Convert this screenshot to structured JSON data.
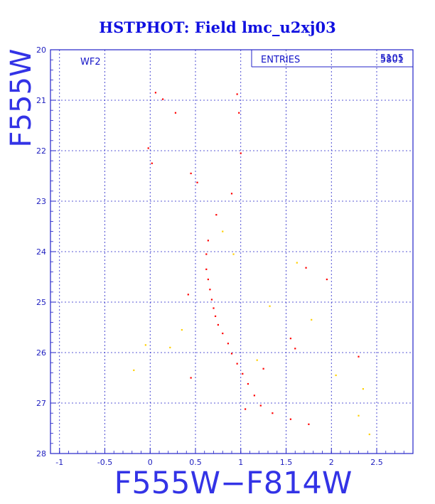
{
  "chart_data": {
    "type": "scatter",
    "title": "HSTPHOT: Field lmc_u2xj03",
    "xlabel": "F555W−F814W",
    "ylabel": "F555W",
    "xlim": [
      -1.1,
      2.9
    ],
    "ylim": [
      28,
      20
    ],
    "y_inverted": true,
    "grid": true,
    "x_ticks": [
      -1,
      -0.5,
      0,
      0.5,
      1,
      1.5,
      2,
      2.5
    ],
    "x_tick_labels": [
      "-1",
      "-0.5",
      "0",
      "0.5",
      "1",
      "1.5",
      "2",
      "2.5"
    ],
    "y_ticks": [
      20,
      21,
      22,
      23,
      24,
      25,
      26,
      27,
      28
    ],
    "y_tick_labels": [
      "20",
      "21",
      "22",
      "23",
      "24",
      "25",
      "26",
      "27",
      "28"
    ],
    "chip_label": "WF2",
    "stats_box": {
      "label": "ENTRIES",
      "value": "5105",
      "overlap_value": "5801"
    },
    "series": [
      {
        "color": "#ff0000",
        "values": [
          [
            0.06,
            20.85
          ],
          [
            0.14,
            20.98
          ],
          [
            0.28,
            21.25
          ],
          [
            -0.02,
            21.95
          ],
          [
            0.02,
            22.25
          ],
          [
            0.45,
            22.45
          ],
          [
            0.52,
            22.63
          ],
          [
            0.96,
            20.88
          ],
          [
            0.98,
            21.25
          ],
          [
            1.0,
            22.05
          ],
          [
            0.9,
            22.85
          ],
          [
            0.73,
            23.27
          ],
          [
            0.64,
            23.78
          ],
          [
            0.62,
            24.05
          ],
          [
            0.62,
            24.35
          ],
          [
            0.64,
            24.55
          ],
          [
            0.66,
            24.75
          ],
          [
            0.68,
            24.95
          ],
          [
            0.7,
            25.12
          ],
          [
            0.72,
            25.28
          ],
          [
            0.75,
            25.45
          ],
          [
            0.8,
            25.62
          ],
          [
            0.86,
            25.82
          ],
          [
            0.9,
            26.02
          ],
          [
            0.96,
            26.22
          ],
          [
            1.02,
            26.42
          ],
          [
            1.08,
            26.62
          ],
          [
            1.15,
            26.85
          ],
          [
            1.22,
            27.05
          ],
          [
            1.35,
            27.2
          ],
          [
            1.55,
            27.32
          ],
          [
            1.75,
            27.42
          ],
          [
            1.55,
            25.72
          ],
          [
            1.6,
            25.92
          ],
          [
            1.72,
            24.32
          ],
          [
            1.95,
            24.55
          ],
          [
            2.3,
            26.08
          ],
          [
            1.25,
            26.32
          ],
          [
            1.05,
            27.12
          ],
          [
            0.45,
            26.5
          ],
          [
            0.42,
            24.85
          ]
        ]
      },
      {
        "color": "#ffd000",
        "values": [
          [
            -0.05,
            25.85
          ],
          [
            -0.18,
            26.35
          ],
          [
            0.35,
            25.55
          ],
          [
            1.18,
            26.15
          ],
          [
            1.32,
            25.08
          ],
          [
            1.62,
            24.22
          ],
          [
            2.35,
            26.72
          ],
          [
            2.3,
            27.25
          ],
          [
            2.42,
            27.62
          ],
          [
            0.8,
            23.6
          ],
          [
            0.92,
            24.05
          ],
          [
            0.22,
            25.9
          ],
          [
            1.78,
            25.35
          ],
          [
            2.05,
            26.45
          ]
        ]
      }
    ]
  }
}
